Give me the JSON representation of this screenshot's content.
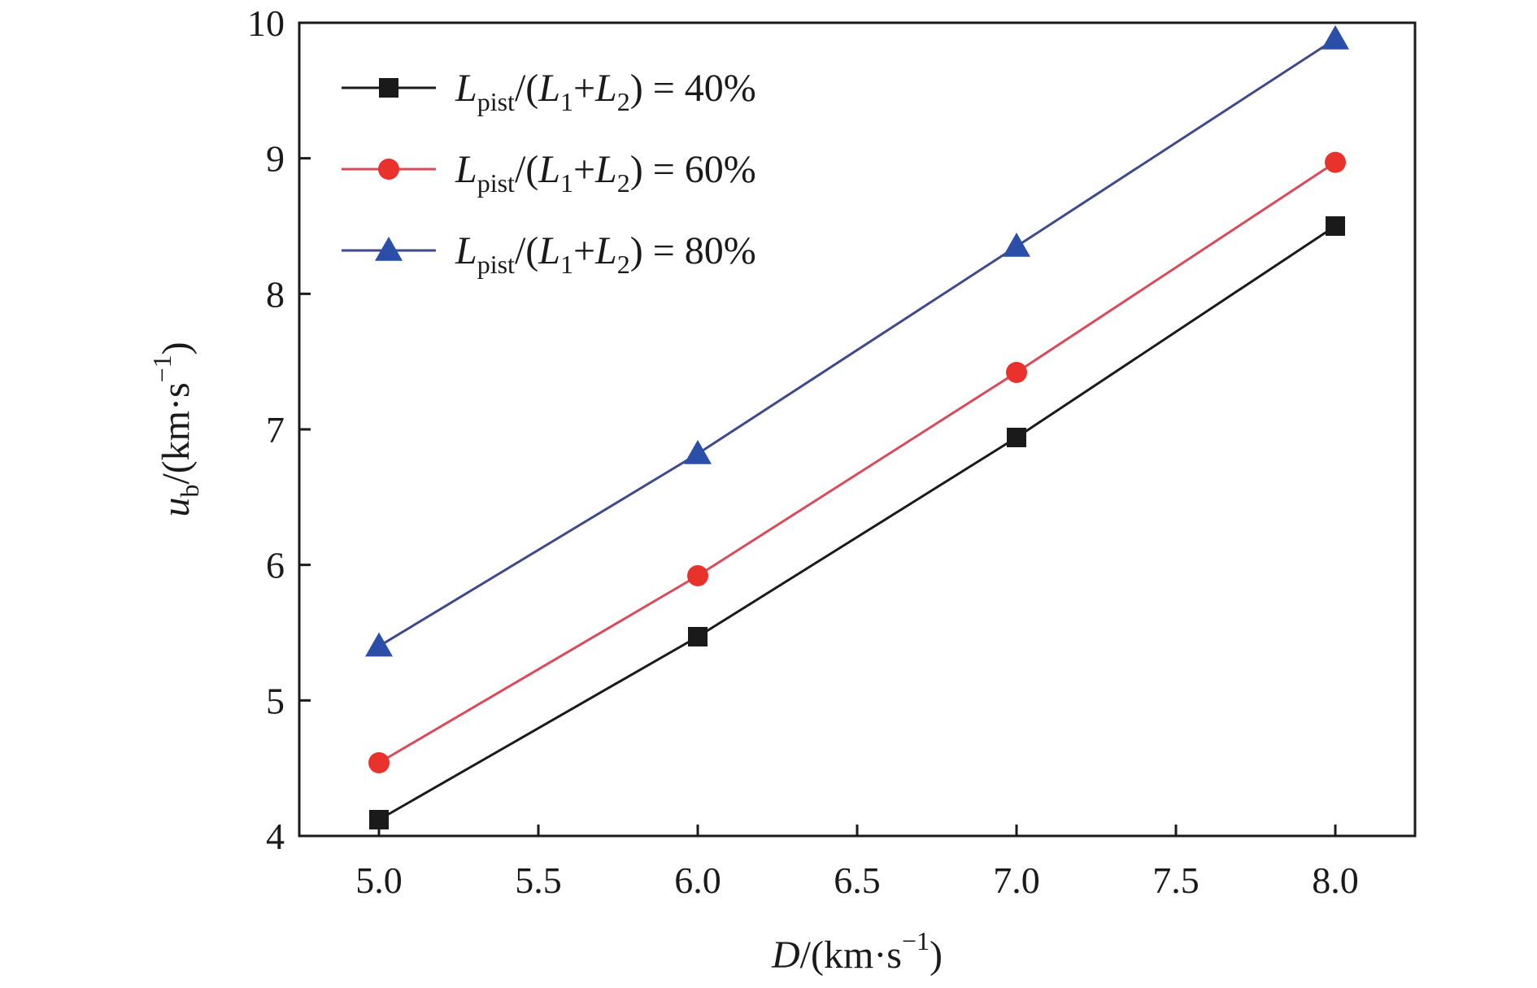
{
  "chart_data": {
    "type": "line",
    "x": [
      5.0,
      6.0,
      7.0,
      8.0
    ],
    "xlim": [
      4.75,
      8.25
    ],
    "ylim": [
      4,
      10
    ],
    "x_ticks": [
      "5.0",
      "5.5",
      "6.0",
      "6.5",
      "7.0",
      "7.5",
      "8.0"
    ],
    "y_ticks": [
      "4",
      "5",
      "6",
      "7",
      "8",
      "9",
      "10"
    ],
    "xlabel": {
      "var": "D",
      "unit": "/(km·s",
      "exp": "−1",
      "close": ")"
    },
    "ylabel": {
      "var": "u",
      "sub": "b",
      "unit": "/(km·s",
      "exp": "−1",
      "close": ")"
    },
    "legend_position": "top-left",
    "grid": false,
    "series": [
      {
        "name": "Lpist/(L1+L2) = 40%",
        "label": {
          "L": "L",
          "sub": "pist",
          "mid": "/(",
          "L1": "L",
          "s1": "1",
          "plus": "+",
          "L2": "L",
          "s2": "2",
          "tail": ") = 40%"
        },
        "values": [
          4.12,
          5.47,
          6.94,
          8.5
        ],
        "color": "#1a1a1a",
        "marker": "square"
      },
      {
        "name": "Lpist/(L1+L2) = 60%",
        "label": {
          "L": "L",
          "sub": "pist",
          "mid": "/(",
          "L1": "L",
          "s1": "1",
          "plus": "+",
          "L2": "L",
          "s2": "2",
          "tail": ") = 60%"
        },
        "values": [
          4.54,
          5.92,
          7.42,
          8.97
        ],
        "color": "#e8322b",
        "line_color": "#d94a5a",
        "marker": "circle"
      },
      {
        "name": "Lpist/(L1+L2) = 80%",
        "label": {
          "L": "L",
          "sub": "pist",
          "mid": "/(",
          "L1": "L",
          "s1": "1",
          "plus": "+",
          "L2": "L",
          "s2": "2",
          "tail": ") = 80%"
        },
        "values": [
          5.4,
          6.82,
          8.35,
          9.88
        ],
        "color": "#2b4fa8",
        "line_color": "#3f4a8c",
        "marker": "triangle"
      }
    ]
  }
}
